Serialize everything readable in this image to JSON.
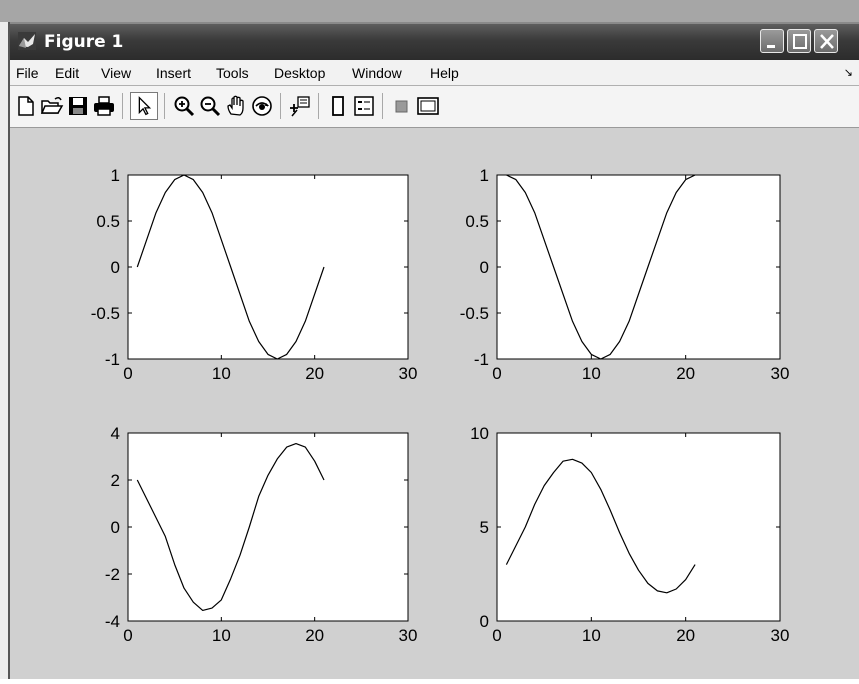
{
  "window": {
    "title": "Figure 1",
    "icon": "matlab-figure-icon",
    "controls": [
      "minimize-icon",
      "maximize-icon",
      "close-icon"
    ]
  },
  "menu": {
    "items": [
      "File",
      "Edit",
      "View",
      "Insert",
      "Tools",
      "Desktop",
      "Window",
      "Help"
    ],
    "overflow_icon": "dock-arrow-icon"
  },
  "toolbar": {
    "tools": [
      "new-figure-icon",
      "open-file-icon",
      "save-icon",
      "print-icon",
      "edit-plot-arrow-icon",
      "zoom-in-icon",
      "zoom-out-icon",
      "pan-hand-icon",
      "rotate-3d-icon",
      "data-cursor-icon",
      "colorbar-icon",
      "legend-icon",
      "hide-plot-tools-icon",
      "show-plot-tools-icon"
    ],
    "active_tool": "edit-plot-arrow-icon"
  },
  "chart_data": [
    {
      "type": "line",
      "title": "",
      "xlabel": "",
      "ylabel": "",
      "xlim": [
        0,
        30
      ],
      "ylim": [
        -1,
        1
      ],
      "xticks": [
        "0",
        "10",
        "20",
        "30"
      ],
      "yticks": [
        "1",
        "0.5",
        "0",
        "-0.5",
        "-1"
      ],
      "x": [
        1,
        3,
        4,
        5,
        6,
        7,
        8,
        9,
        11,
        13,
        14,
        15,
        16,
        17,
        18,
        19,
        21
      ],
      "y": [
        0,
        0.59,
        0.81,
        0.95,
        1.0,
        0.95,
        0.81,
        0.59,
        0,
        -0.59,
        -0.81,
        -0.95,
        -1.0,
        -0.95,
        -0.81,
        -0.59,
        0
      ]
    },
    {
      "type": "line",
      "title": "",
      "xlabel": "",
      "ylabel": "",
      "xlim": [
        0,
        30
      ],
      "ylim": [
        -1,
        1
      ],
      "xticks": [
        "0",
        "10",
        "20",
        "30"
      ],
      "yticks": [
        "1",
        "0.5",
        "0",
        "-0.5",
        "-1"
      ],
      "x": [
        1,
        2,
        3,
        4,
        6,
        8,
        9,
        10,
        11,
        12,
        13,
        14,
        16,
        18,
        19,
        20,
        21
      ],
      "y": [
        1.0,
        0.95,
        0.81,
        0.59,
        0,
        -0.59,
        -0.81,
        -0.95,
        -1.0,
        -0.95,
        -0.81,
        -0.59,
        0,
        0.59,
        0.81,
        0.95,
        1.0
      ]
    },
    {
      "type": "line",
      "title": "",
      "xlabel": "",
      "ylabel": "",
      "xlim": [
        0,
        30
      ],
      "ylim": [
        -4,
        4
      ],
      "xticks": [
        "0",
        "10",
        "20",
        "30"
      ],
      "yticks": [
        "4",
        "2",
        "0",
        "-2",
        "-4"
      ],
      "x": [
        1,
        3,
        4,
        5,
        6,
        7,
        8,
        9,
        10,
        11,
        12,
        13,
        14,
        15,
        16,
        17,
        18,
        19,
        20,
        21
      ],
      "y": [
        2.0,
        0.4,
        -0.4,
        -1.6,
        -2.6,
        -3.2,
        -3.55,
        -3.45,
        -3.1,
        -2.2,
        -1.2,
        0.0,
        1.3,
        2.2,
        2.9,
        3.4,
        3.55,
        3.4,
        2.8,
        2.0
      ]
    },
    {
      "type": "line",
      "title": "",
      "xlabel": "",
      "ylabel": "",
      "xlim": [
        0,
        30
      ],
      "ylim": [
        0,
        10
      ],
      "xticks": [
        "0",
        "10",
        "20",
        "30"
      ],
      "yticks": [
        "10",
        "5",
        "0"
      ],
      "x": [
        1,
        3,
        4,
        5,
        6,
        7,
        8,
        9,
        10,
        11,
        12,
        13,
        14,
        15,
        16,
        17,
        18,
        19,
        20,
        21
      ],
      "y": [
        3.0,
        5.0,
        6.2,
        7.2,
        7.9,
        8.5,
        8.6,
        8.4,
        7.9,
        7.0,
        5.9,
        4.7,
        3.6,
        2.7,
        2.0,
        1.6,
        1.5,
        1.7,
        2.2,
        3.0
      ]
    }
  ]
}
